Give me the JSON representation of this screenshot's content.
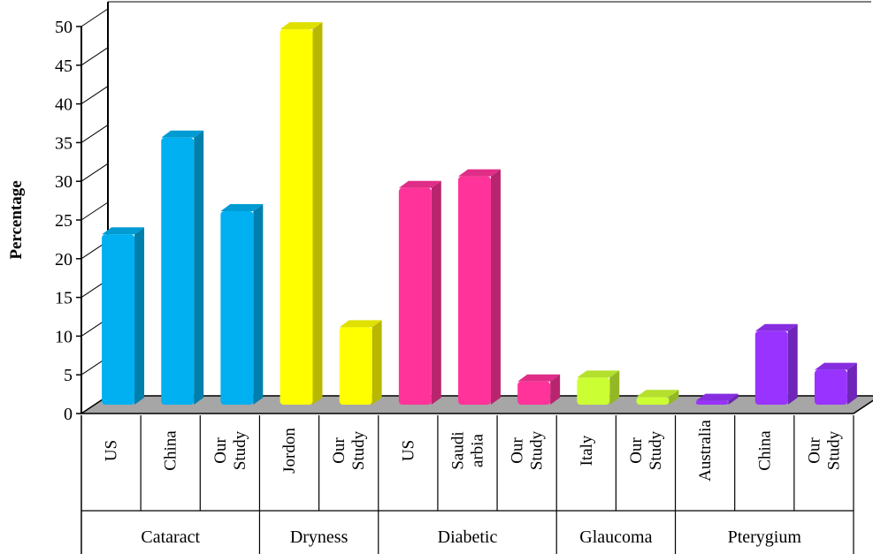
{
  "chart_data": {
    "type": "bar",
    "style": "3d-column",
    "title": "",
    "xlabel": "",
    "ylabel": "Percentage",
    "ylim": [
      0,
      50
    ],
    "yticks": [
      0,
      5,
      10,
      15,
      20,
      25,
      30,
      35,
      40,
      45,
      50
    ],
    "grid": false,
    "legend": "none",
    "groups": [
      {
        "name": "Cataract",
        "color": "#00b0f0",
        "bars": [
          {
            "label": [
              "US"
            ],
            "value": 22
          },
          {
            "label": [
              "China"
            ],
            "value": 34.5
          },
          {
            "label": [
              "Our",
              "Study"
            ],
            "value": 25
          }
        ]
      },
      {
        "name": "Dryness",
        "color": "#ffff00",
        "bars": [
          {
            "label": [
              "Jordon"
            ],
            "value": 48.5
          },
          {
            "label": [
              "Our",
              "Study"
            ],
            "value": 10
          }
        ]
      },
      {
        "name": "Diabetic",
        "color": "#ff3399",
        "bars": [
          {
            "label": [
              "US"
            ],
            "value": 28
          },
          {
            "label": [
              "Saudi",
              "arbia"
            ],
            "value": 29.5
          },
          {
            "label": [
              "Our",
              "Study"
            ],
            "value": 3
          }
        ]
      },
      {
        "name": "Glaucoma",
        "color": "#ccff33",
        "bars": [
          {
            "label": [
              "Italy"
            ],
            "value": 3.5
          },
          {
            "label": [
              "Our",
              "Study"
            ],
            "value": 1
          }
        ]
      },
      {
        "name": "Pterygium",
        "color": "#9933ff",
        "bars": [
          {
            "label": [
              "Australia"
            ],
            "value": 0.5
          },
          {
            "label": [
              "China"
            ],
            "value": 9.5
          },
          {
            "label": [
              "Our",
              "Study"
            ],
            "value": 4.5
          }
        ]
      }
    ],
    "floor_color": "#a6a6a6"
  }
}
